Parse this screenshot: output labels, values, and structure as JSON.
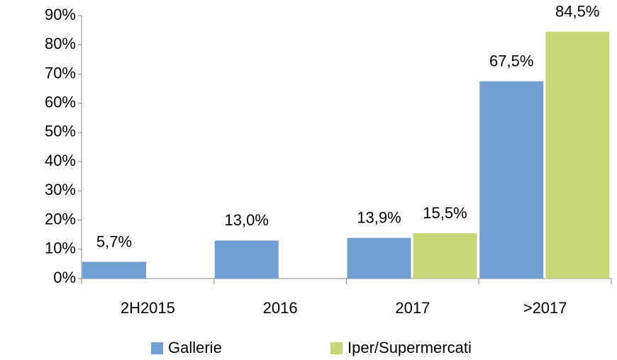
{
  "chart_data": {
    "type": "bar",
    "categories": [
      "2H2015",
      "2016",
      "2017",
      ">2017"
    ],
    "series": [
      {
        "name": "Gallerie",
        "color": "#729fd2",
        "values": [
          5.7,
          13.0,
          13.9,
          67.5
        ],
        "value_labels": [
          "5,7%",
          "13,0%",
          "13,9%",
          "67,5%"
        ]
      },
      {
        "name": "Iper/Supermercati",
        "color": "#c8d677",
        "values": [
          null,
          null,
          15.5,
          84.5
        ],
        "value_labels": [
          null,
          null,
          "15,5%",
          "84,5%"
        ]
      }
    ],
    "ylim": [
      0,
      90
    ],
    "yticks": [
      {
        "value": 0,
        "label": "0%"
      },
      {
        "value": 10,
        "label": "10%"
      },
      {
        "value": 20,
        "label": "20%"
      },
      {
        "value": 30,
        "label": "30%"
      },
      {
        "value": 40,
        "label": "40%"
      },
      {
        "value": 50,
        "label": "50%"
      },
      {
        "value": 60,
        "label": "60%"
      },
      {
        "value": 70,
        "label": "70%"
      },
      {
        "value": 80,
        "label": "80%"
      },
      {
        "value": 90,
        "label": "90%"
      }
    ],
    "legend": "bottom"
  }
}
